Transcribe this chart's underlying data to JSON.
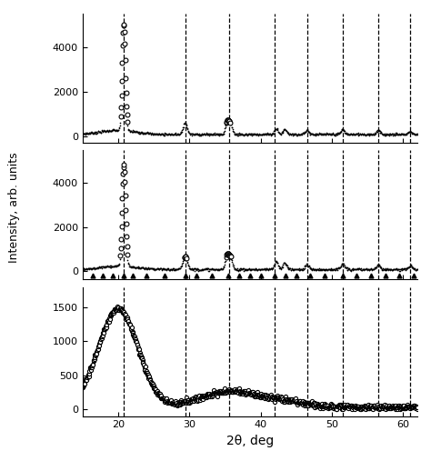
{
  "x_min": 15,
  "x_max": 62,
  "xlabel": "2θ, deg",
  "ylabel": "Intensity, arb. units",
  "dashed_lines": [
    20.8,
    29.4,
    35.6,
    42.0,
    46.5,
    51.5,
    56.5,
    61.0
  ],
  "panel1_yticks": [
    0,
    2000,
    4000
  ],
  "panel2_yticks": [
    0,
    2000,
    4000
  ],
  "panel3_yticks": [
    0,
    500,
    1000,
    1500
  ],
  "panel1_ylim": [
    -300,
    5500
  ],
  "panel2_ylim": [
    -400,
    5500
  ],
  "panel3_ylim": [
    -100,
    1800
  ],
  "bg_color": "white",
  "xticks": [
    20,
    30,
    40,
    50,
    60
  ]
}
